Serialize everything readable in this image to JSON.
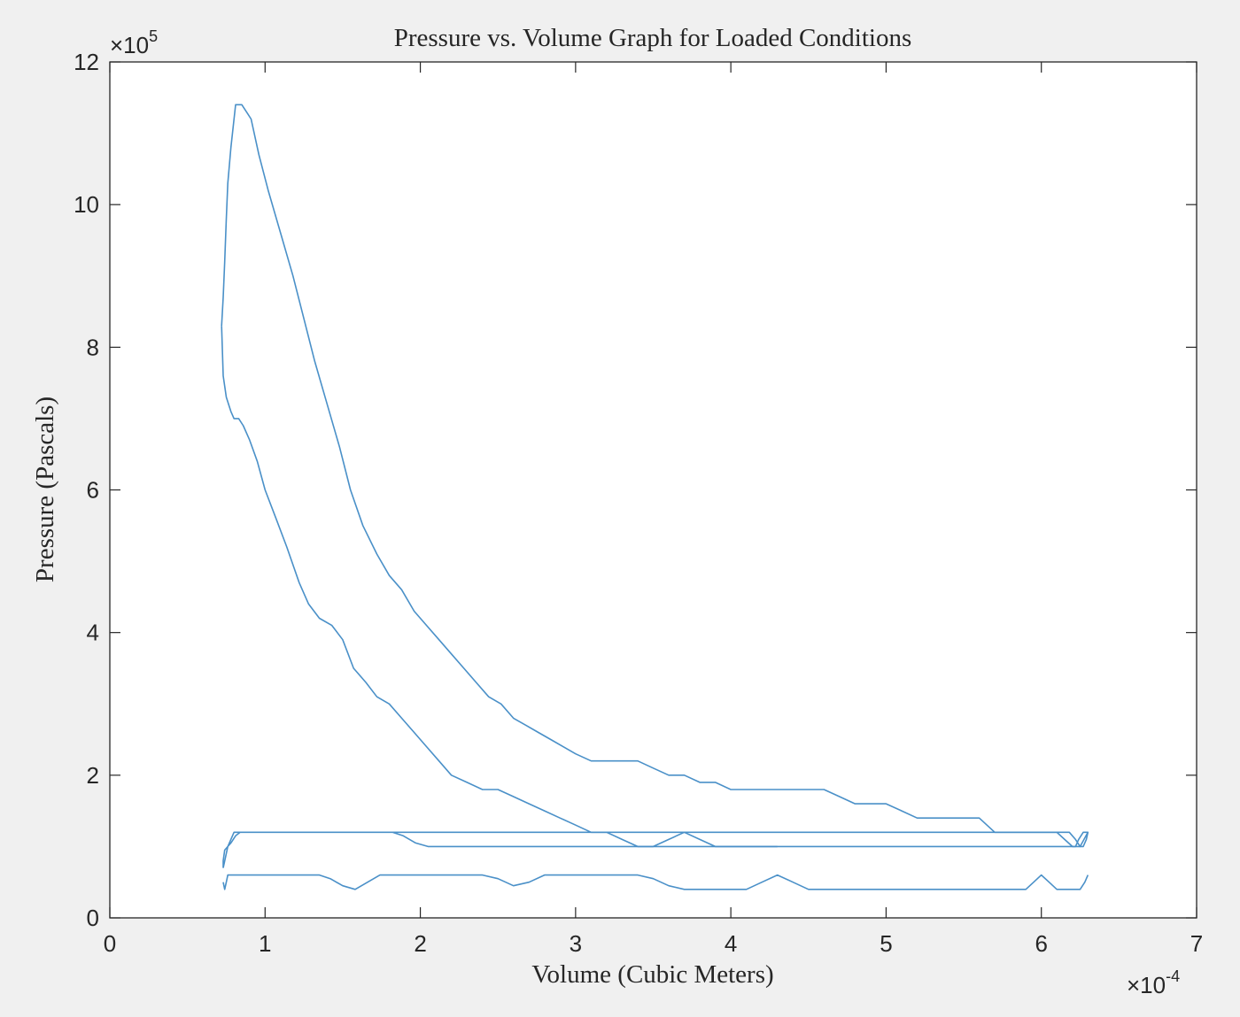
{
  "chart_data": {
    "type": "line",
    "title": "Pressure vs. Volume Graph for Loaded Conditions",
    "xlabel": "Volume (Cubic Meters)",
    "ylabel": "Pressure (Pascals)",
    "x_multiplier_label": {
      "base": "×10",
      "exponent": "-4"
    },
    "y_multiplier_label": {
      "base": "×10",
      "exponent": "5"
    },
    "xlim": [
      0,
      7
    ],
    "ylim": [
      0,
      12
    ],
    "x_ticks": [
      0,
      1,
      2,
      3,
      4,
      5,
      6,
      7
    ],
    "y_ticks": [
      0,
      2,
      4,
      6,
      8,
      10,
      12
    ],
    "x_tick_labels": [
      "0",
      "1",
      "2",
      "3",
      "4",
      "5",
      "6",
      "7"
    ],
    "y_tick_labels": [
      "0",
      "2",
      "4",
      "6",
      "8",
      "10",
      "12"
    ],
    "grid": false,
    "legend": "none",
    "line_color": "#4a90c8",
    "series": [
      {
        "x": [
          0.73,
          0.73,
          0.74,
          0.76,
          0.78,
          0.81,
          0.84,
          0.86,
          0.89,
          0.92,
          0.95,
          0.99,
          1.02,
          1.07,
          1.12,
          1.17,
          1.22,
          1.26,
          1.31,
          1.36,
          1.4,
          1.45,
          1.5,
          1.55,
          1.61,
          1.68,
          1.75,
          1.82,
          1.89,
          1.97,
          2.05,
          2.13,
          2.21,
          2.29,
          2.37,
          2.45,
          2.55,
          2.65,
          2.75,
          2.85,
          2.95,
          3.05,
          3.15,
          3.25,
          3.38,
          3.52,
          3.68,
          3.83,
          3.98,
          4.13,
          4.28,
          4.43,
          4.58,
          4.73,
          4.88,
          5.03,
          5.18,
          5.33,
          5.48,
          5.63,
          5.78,
          5.93,
          6.02,
          6.08,
          6.11,
          6.15,
          6.18,
          6.22,
          6.24,
          6.27,
          6.3,
          6.29,
          6.27,
          6.25,
          6.22,
          6.18,
          6.1,
          6.0,
          5.9,
          5.8,
          5.7,
          5.6,
          5.5,
          5.4,
          5.3,
          5.2,
          5.1,
          5.0,
          4.9,
          4.8,
          4.7,
          4.6,
          4.5,
          4.4,
          4.3,
          4.2,
          4.1,
          4.0,
          3.9,
          3.8,
          3.7,
          3.6,
          3.5,
          3.4,
          3.3,
          3.2,
          3.1,
          3.0,
          2.9,
          2.8,
          2.7,
          2.6,
          2.5,
          2.4,
          2.3,
          2.2,
          2.1,
          2.0,
          1.9,
          1.8,
          1.7,
          1.6,
          1.5,
          1.4,
          1.3,
          1.2,
          1.1,
          1.0,
          0.9,
          0.8,
          0.76,
          0.73
        ],
        "y": [
          0.7,
          0.8,
          0.95,
          1.0,
          1.05,
          1.15,
          1.2,
          1.2,
          1.2,
          1.2,
          1.2,
          1.2,
          1.2,
          1.2,
          1.2,
          1.2,
          1.2,
          1.2,
          1.2,
          1.2,
          1.2,
          1.2,
          1.2,
          1.2,
          1.2,
          1.2,
          1.2,
          1.2,
          1.15,
          1.05,
          1.0,
          1.0,
          1.0,
          1.0,
          1.0,
          1.0,
          1.0,
          1.0,
          1.0,
          1.0,
          1.0,
          1.0,
          1.0,
          1.0,
          1.0,
          1.0,
          1.0,
          1.0,
          1.0,
          1.0,
          1.0,
          1.0,
          1.0,
          1.0,
          1.0,
          1.0,
          1.0,
          1.0,
          1.0,
          1.0,
          1.0,
          1.0,
          1.0,
          1.0,
          1.0,
          1.0,
          1.0,
          1.0,
          1.1,
          1.2,
          1.2,
          1.1,
          1.0,
          1.0,
          1.1,
          1.2,
          1.2,
          1.2,
          1.2,
          1.2,
          1.2,
          1.2,
          1.2,
          1.2,
          1.2,
          1.2,
          1.2,
          1.2,
          1.2,
          1.2,
          1.2,
          1.2,
          1.2,
          1.2,
          1.2,
          1.2,
          1.2,
          1.2,
          1.2,
          1.2,
          1.2,
          1.2,
          1.2,
          1.2,
          1.2,
          1.2,
          1.2,
          1.2,
          1.2,
          1.2,
          1.2,
          1.2,
          1.2,
          1.2,
          1.2,
          1.2,
          1.2,
          1.2,
          1.2,
          1.2,
          1.2,
          1.2,
          1.2,
          1.2,
          1.2,
          1.2,
          1.2,
          1.2,
          1.2,
          1.2,
          1.0,
          0.7
        ]
      },
      {
        "x": [
          0.73,
          0.74,
          0.75,
          0.76,
          0.78,
          0.8,
          0.82,
          0.85,
          0.88,
          0.92,
          0.96,
          1.0,
          1.05,
          1.1,
          1.15,
          1.22,
          1.28,
          1.35,
          1.42,
          1.5,
          1.58,
          1.66,
          1.74,
          1.82,
          1.9,
          1.98,
          2.06,
          2.14,
          2.22,
          2.3,
          2.4,
          2.5,
          2.6,
          2.7,
          2.8,
          2.9,
          3.0,
          3.1,
          3.2,
          3.3,
          3.4,
          3.5,
          3.6,
          3.7,
          3.8,
          3.9,
          4.0,
          4.1,
          4.2,
          4.3,
          4.4,
          4.5,
          4.6,
          4.7,
          4.8,
          4.9,
          5.0,
          5.1,
          5.2,
          5.3,
          5.4,
          5.5,
          5.6,
          5.7,
          5.8,
          5.9,
          5.95,
          6.0,
          6.05,
          6.1,
          6.15,
          6.2,
          6.25,
          6.28,
          6.3
        ],
        "y": [
          0.5,
          0.4,
          0.5,
          0.6,
          0.6,
          0.6,
          0.6,
          0.6,
          0.6,
          0.6,
          0.6,
          0.6,
          0.6,
          0.6,
          0.6,
          0.6,
          0.6,
          0.6,
          0.55,
          0.45,
          0.4,
          0.5,
          0.6,
          0.6,
          0.6,
          0.6,
          0.6,
          0.6,
          0.6,
          0.6,
          0.6,
          0.55,
          0.45,
          0.5,
          0.6,
          0.6,
          0.6,
          0.6,
          0.6,
          0.6,
          0.6,
          0.55,
          0.45,
          0.4,
          0.4,
          0.4,
          0.4,
          0.4,
          0.5,
          0.6,
          0.5,
          0.4,
          0.4,
          0.4,
          0.4,
          0.4,
          0.4,
          0.4,
          0.4,
          0.4,
          0.4,
          0.4,
          0.4,
          0.4,
          0.4,
          0.4,
          0.5,
          0.6,
          0.5,
          0.4,
          0.4,
          0.4,
          0.4,
          0.5,
          0.6
        ]
      },
      {
        "x": [
          0.72,
          0.73,
          0.74,
          0.75,
          0.76,
          0.78,
          0.81,
          0.85,
          0.88,
          0.91,
          0.96,
          1.02,
          1.1,
          1.18,
          1.25,
          1.32,
          1.4,
          1.48,
          1.55,
          1.63,
          1.72,
          1.8,
          1.88,
          1.96,
          2.04,
          2.12,
          2.2,
          2.28,
          2.36,
          2.44,
          2.52,
          2.6,
          2.68,
          2.76,
          2.84,
          2.92,
          3.0,
          3.1,
          3.2,
          3.3,
          3.4,
          3.5,
          3.6,
          3.7,
          3.8,
          3.9,
          4.0,
          4.1,
          4.2,
          4.3,
          4.4,
          4.5,
          4.6,
          4.7,
          4.8,
          4.9,
          5.0,
          5.1,
          5.2,
          5.3,
          5.4,
          5.5,
          5.6,
          5.7,
          5.8,
          5.9,
          6.0,
          6.1,
          6.15,
          6.2,
          6.25,
          6.3
        ],
        "y": [
          8.3,
          8.7,
          9.2,
          9.8,
          10.3,
          10.8,
          11.4,
          11.4,
          11.3,
          11.2,
          10.7,
          10.2,
          9.6,
          9.0,
          8.4,
          7.8,
          7.2,
          6.6,
          6.0,
          5.5,
          5.1,
          4.8,
          4.6,
          4.3,
          4.1,
          3.9,
          3.7,
          3.5,
          3.3,
          3.1,
          3.0,
          2.8,
          2.7,
          2.6,
          2.5,
          2.4,
          2.3,
          2.2,
          2.2,
          2.2,
          2.2,
          2.1,
          2.0,
          2.0,
          1.9,
          1.9,
          1.8,
          1.8,
          1.8,
          1.8,
          1.8,
          1.8,
          1.8,
          1.7,
          1.6,
          1.6,
          1.6,
          1.5,
          1.4,
          1.4,
          1.4,
          1.4,
          1.4,
          1.2,
          1.2,
          1.2,
          1.2,
          1.2,
          1.1,
          1.0,
          1.0,
          1.2
        ]
      },
      {
        "x": [
          0.72,
          0.73,
          0.75,
          0.78,
          0.8,
          0.83,
          0.86,
          0.9,
          0.95,
          1.0,
          1.07,
          1.14,
          1.22,
          1.28,
          1.35,
          1.43,
          1.5,
          1.57,
          1.65,
          1.72,
          1.8,
          1.88,
          1.96,
          2.04,
          2.12,
          2.2,
          2.3,
          2.4,
          2.5,
          2.6,
          2.7,
          2.8,
          2.9,
          3.0,
          3.1,
          3.2,
          3.3,
          3.4,
          3.5,
          3.6,
          3.7,
          3.8,
          3.9,
          4.0,
          4.1,
          4.2,
          4.3
        ],
        "y": [
          8.3,
          7.6,
          7.3,
          7.1,
          7.0,
          7.0,
          6.9,
          6.7,
          6.4,
          6.0,
          5.6,
          5.2,
          4.7,
          4.4,
          4.2,
          4.1,
          3.9,
          3.5,
          3.3,
          3.1,
          3.0,
          2.8,
          2.6,
          2.4,
          2.2,
          2.0,
          1.9,
          1.8,
          1.8,
          1.7,
          1.6,
          1.5,
          1.4,
          1.3,
          1.2,
          1.2,
          1.1,
          1.0,
          1.0,
          1.1,
          1.2,
          1.1,
          1.0,
          1.0,
          1.0,
          1.0,
          1.0
        ]
      }
    ]
  }
}
